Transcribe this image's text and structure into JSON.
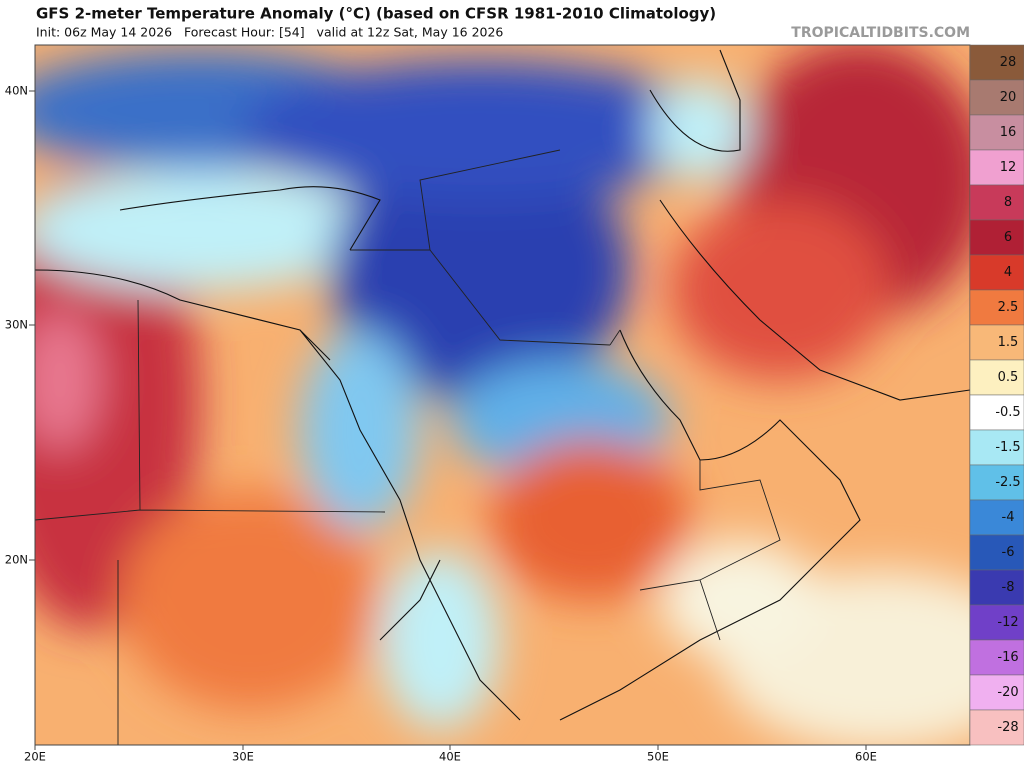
{
  "header": {
    "title": "GFS 2-meter Temperature Anomaly (°C) (based on CFSR 1981-2010 Climatology)",
    "subtitle": "Init: 06z May 14 2026   Forecast Hour: [54]   valid at 12z Sat, May 16 2026",
    "credit": "TROPICALTIDBITS.COM"
  },
  "map": {
    "lat_labels": [
      "40N",
      "30N",
      "20N"
    ],
    "lon_labels": [
      "20E",
      "30E",
      "40E",
      "50E",
      "60E"
    ]
  },
  "colorbar": {
    "levels": [
      {
        "label": "28",
        "color": "#8a5a3a"
      },
      {
        "label": "20",
        "color": "#a87a70"
      },
      {
        "label": "16",
        "color": "#c88ea0"
      },
      {
        "label": "12",
        "color": "#f0a0d0"
      },
      {
        "label": "8",
        "color": "#c83a5a"
      },
      {
        "label": "6",
        "color": "#b02035"
      },
      {
        "label": "4",
        "color": "#d83a2a"
      },
      {
        "label": "2.5",
        "color": "#f07a40"
      },
      {
        "label": "1.5",
        "color": "#f8b878"
      },
      {
        "label": "0.5",
        "color": "#fdf0c0"
      },
      {
        "label": "-0.5",
        "color": "#ffffff"
      },
      {
        "label": "-1.5",
        "color": "#a8e8f4"
      },
      {
        "label": "-2.5",
        "color": "#60c0e8"
      },
      {
        "label": "-4",
        "color": "#3a88d8"
      },
      {
        "label": "-6",
        "color": "#2858b8"
      },
      {
        "label": "-8",
        "color": "#3a3ab0"
      },
      {
        "label": "-12",
        "color": "#7040c8"
      },
      {
        "label": "-16",
        "color": "#c070e0"
      },
      {
        "label": "-20",
        "color": "#f0b0f0"
      },
      {
        "label": "-28",
        "color": "#f8c0c0"
      }
    ]
  }
}
